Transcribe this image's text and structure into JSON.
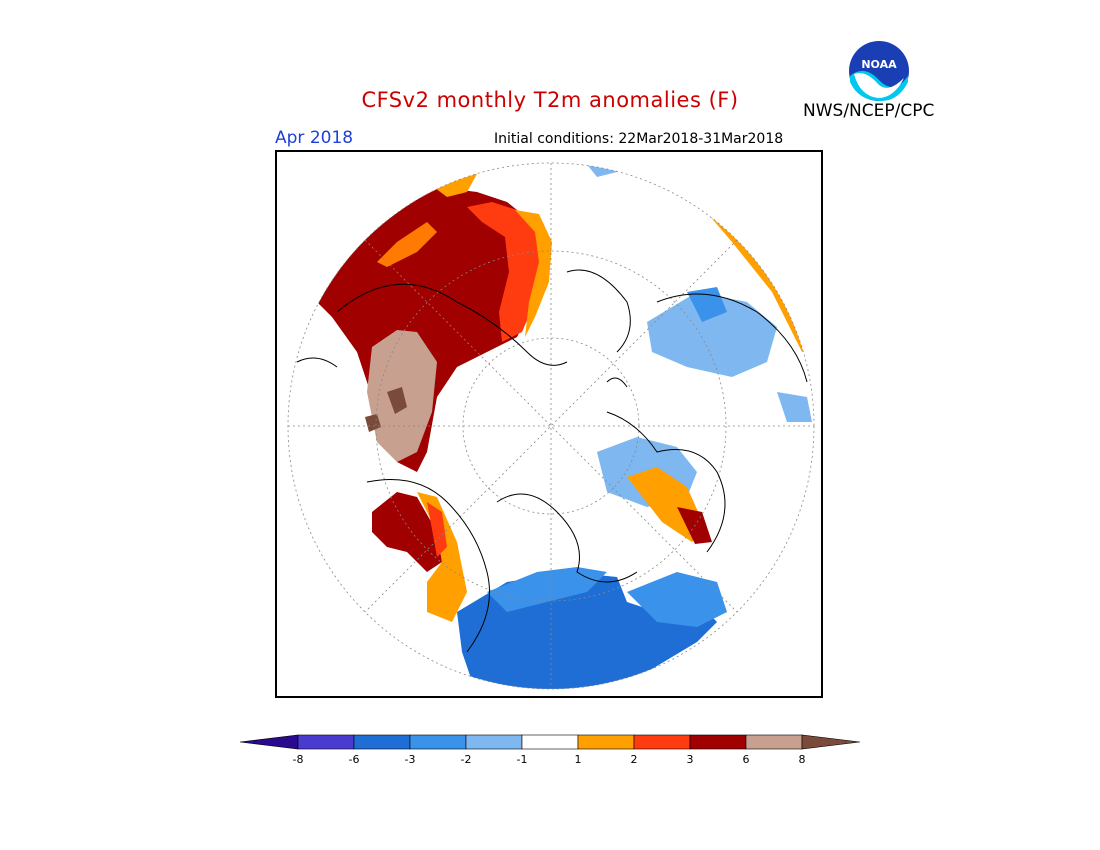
{
  "header": {
    "title": "CFSv2 monthly T2m anomalies (F)",
    "agency": "NWS/NCEP/CPC",
    "logo_text": "NOAA",
    "month": "Apr 2018",
    "initial_conditions": "Initial conditions: 22Mar2018-31Mar2018"
  },
  "legend": {
    "bins": [
      {
        "color": "#2a0b8f"
      },
      {
        "color": "#4a3bd0"
      },
      {
        "color": "#1f6ed6"
      },
      {
        "color": "#3a92ea"
      },
      {
        "color": "#7fb8f0"
      },
      {
        "color": "#ffffff"
      },
      {
        "color": "#ffa000"
      },
      {
        "color": "#ff3c10"
      },
      {
        "color": "#a00000"
      },
      {
        "color": "#c8a090"
      },
      {
        "color": "#7a4a3a"
      }
    ],
    "tick_labels": [
      "-8",
      "-6",
      "-3",
      "-2",
      "-1",
      "1",
      "2",
      "3",
      "6",
      "8"
    ]
  },
  "map": {
    "projection": "polar-stereographic-north",
    "colors": {
      "darkred": "#a00000",
      "red": "#ff3c10",
      "orange": "#ffa000",
      "rose": "#c8a090",
      "brown": "#7a4a3a",
      "blue": "#1f6ed6",
      "midblue": "#3a92ea",
      "lightblue": "#7fb8f0"
    }
  }
}
